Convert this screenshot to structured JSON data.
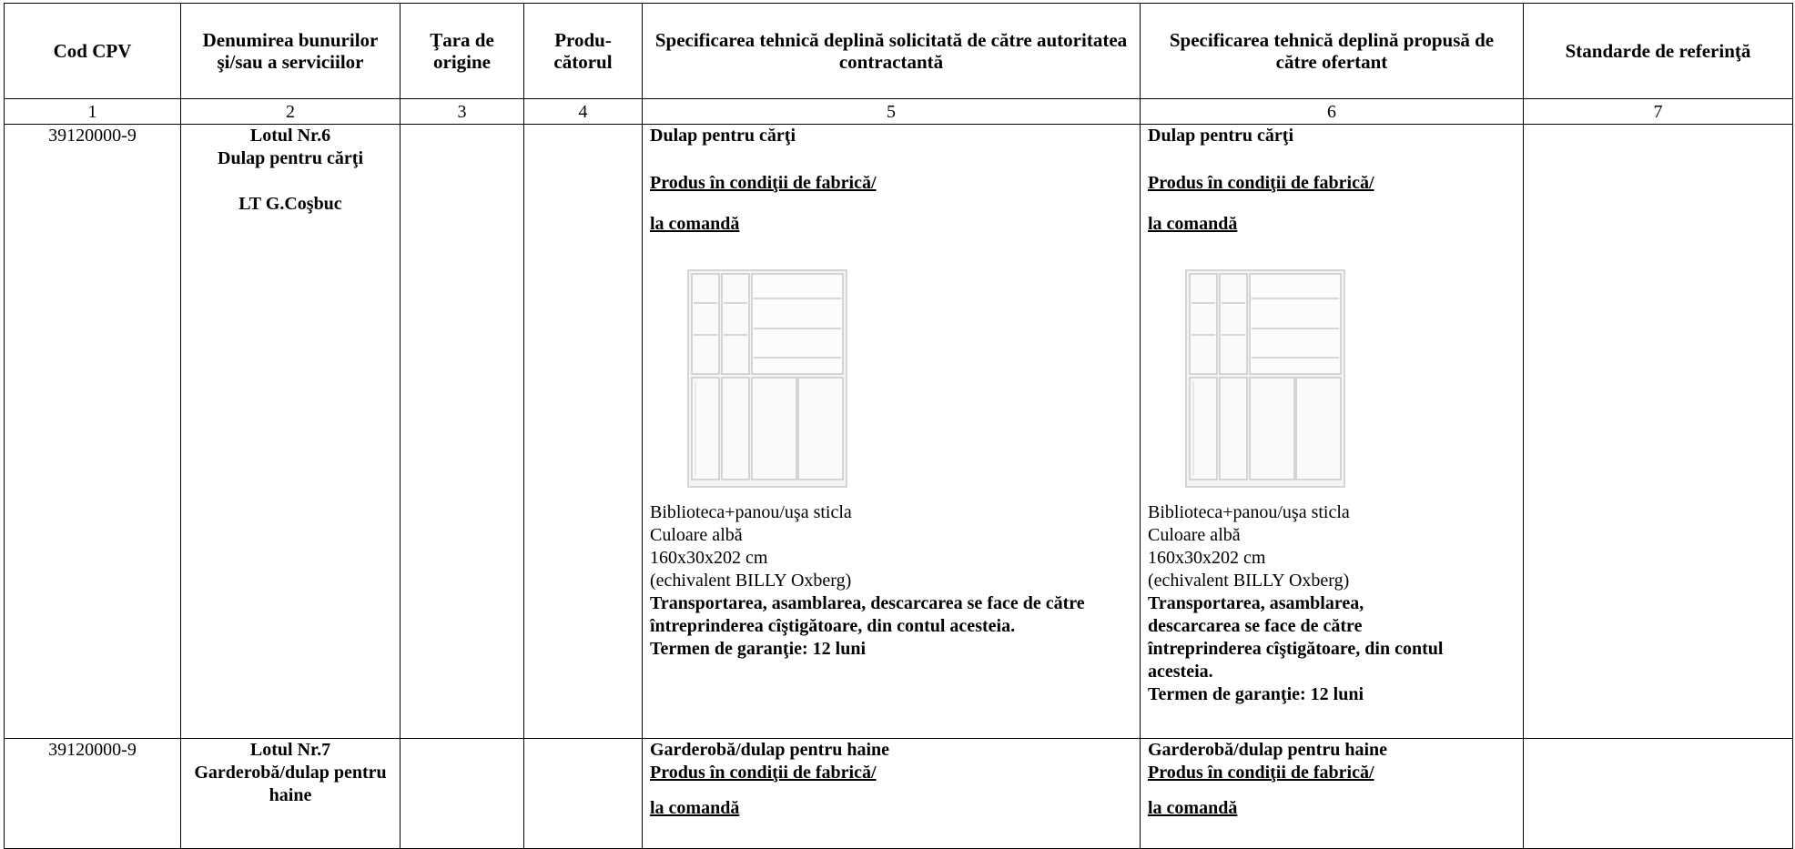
{
  "table": {
    "header": [
      "Cod CPV",
      "Denumirea bunurilor şi/sau a serviciilor",
      "Ţara de origine",
      "Produ-cătorul",
      "Specificarea tehnică deplină solicitată de către autoritatea contractantă",
      "Specificarea tehnică deplină propusă de către ofertant",
      "Standarde de referinţă"
    ],
    "numbers": [
      "1",
      "2",
      "3",
      "4",
      "5",
      "6",
      "7"
    ],
    "rows": [
      {
        "cpv": "39120000-9",
        "lot": "Lotul Nr.6",
        "item": "Dulap pentru cărţi",
        "location": "LT G.Coşbuc",
        "requested": {
          "title": "Dulap pentru cărţi",
          "production": [
            "Produs în condiţii de fabrică/",
            "la comandă"
          ],
          "details": [
            "Biblioteca+panou/uşa sticla",
            "Culoare albă",
            "160x30x202 cm",
            "(echivalent BILLY Oxberg)"
          ],
          "delivery": "Transportarea, asamblarea, descarcarea se face de către întreprinderea cîştigătoare, din  contul acesteia.",
          "warranty": "Termen de garanţie: 12 luni"
        },
        "offered": {
          "title": "Dulap pentru cărţi",
          "production": [
            "Produs în condiţii de fabrică/",
            "la comandă"
          ],
          "details": [
            "Biblioteca+panou/uşa sticla",
            "Culoare albă",
            "160x30x202 cm",
            "(echivalent BILLY Oxberg)"
          ],
          "delivery": "Transportarea, asamblarea, descarcarea se face de către întreprinderea cîştigătoare, din contul acesteia.",
          "warranty": "Termen de garanţie: 12 luni"
        }
      },
      {
        "cpv": "39120000-9",
        "lot": "Lotul Nr.7",
        "item": "Garderobă/dulap pentru haine",
        "requested": {
          "title": "Garderobă/dulap pentru haine",
          "production": [
            "Produs în condiţii de fabrică/",
            "la comandă"
          ]
        },
        "offered": {
          "title": "Garderobă/dulap pentru haine",
          "production": [
            "Produs în condiţii de fabrică/",
            "la comandă"
          ]
        }
      }
    ]
  }
}
